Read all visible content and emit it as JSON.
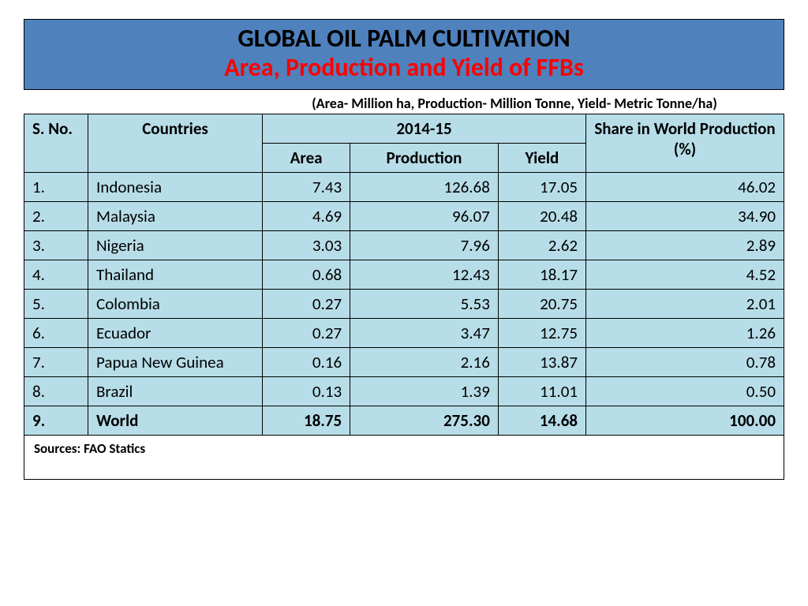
{
  "title": {
    "line1": "GLOBAL OIL PALM CULTIVATION",
    "line2": "Area, Production and Yield of FFBs",
    "box_bg": "#4f81bd",
    "line1_color": "#000000",
    "line2_color": "#ff0000"
  },
  "units_note": "(Area- Million ha, Production- Million Tonne,  Yield- Metric Tonne/ha)",
  "table": {
    "type": "table",
    "header_bg": "#b7dde8",
    "row_bg": "#b7dde8",
    "border_color": "#000000",
    "columns": {
      "sno": "S. No.",
      "countries": "Countries",
      "period": "2014-15",
      "area": "Area",
      "production": "Production",
      "yield": "Yield",
      "share": "Share in World Production (%)"
    },
    "rows": [
      {
        "sno": "1.",
        "country": "Indonesia",
        "area": "7.43",
        "production": "126.68",
        "yield": "17.05",
        "share": "46.02",
        "bold": false
      },
      {
        "sno": "2.",
        "country": "Malaysia",
        "area": "4.69",
        "production": "96.07",
        "yield": "20.48",
        "share": "34.90",
        "bold": false
      },
      {
        "sno": "3.",
        "country": "Nigeria",
        "area": "3.03",
        "production": "7.96",
        "yield": "2.62",
        "share": "2.89",
        "bold": false
      },
      {
        "sno": "4.",
        "country": "Thailand",
        "area": "0.68",
        "production": "12.43",
        "yield": "18.17",
        "share": "4.52",
        "bold": false
      },
      {
        "sno": "5.",
        "country": "Colombia",
        "area": "0.27",
        "production": "5.53",
        "yield": "20.75",
        "share": "2.01",
        "bold": false
      },
      {
        "sno": "6.",
        "country": "Ecuador",
        "area": "0.27",
        "production": "3.47",
        "yield": "12.75",
        "share": "1.26",
        "bold": false
      },
      {
        "sno": "7.",
        "country": "Papua New Guinea",
        "area": "0.16",
        "production": "2.16",
        "yield": "13.87",
        "share": "0.78",
        "bold": false
      },
      {
        "sno": "8.",
        "country": "Brazil",
        "area": "0.13",
        "production": "1.39",
        "yield": "11.01",
        "share": "0.50",
        "bold": false
      },
      {
        "sno": "9.",
        "country": "World",
        "area": "18.75",
        "production": "275.30",
        "yield": "14.68",
        "share": "100.00",
        "bold": true
      }
    ],
    "sources": "Sources: FAO Statics"
  }
}
